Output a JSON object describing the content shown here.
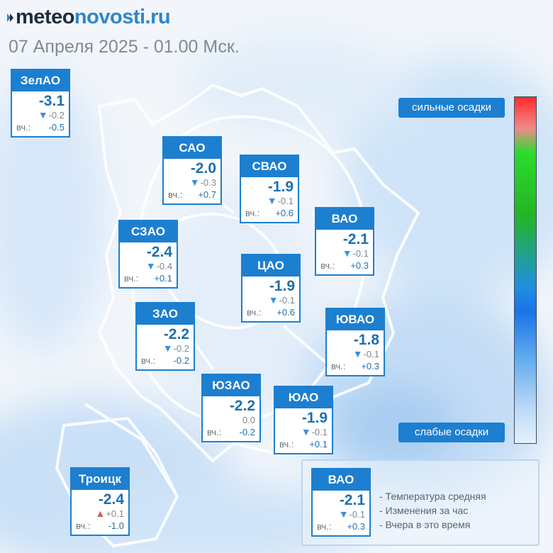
{
  "header": {
    "logo_left": "meteo",
    "logo_right": "novosti.ru",
    "date": "07 Апреля 2025 - 01.00 Мск."
  },
  "yesterday_label": "вч.:",
  "districts": [
    {
      "id": "zelao",
      "name": "ЗелАО",
      "temp": "-3.1",
      "dir": "down",
      "change": "-0.2",
      "yesterday": "-0.5"
    },
    {
      "id": "sao",
      "name": "САО",
      "temp": "-2.0",
      "dir": "down",
      "change": "-0.3",
      "yesterday": "+0.7"
    },
    {
      "id": "svao",
      "name": "СВАО",
      "temp": "-1.9",
      "dir": "down",
      "change": "-0.1",
      "yesterday": "+0.6"
    },
    {
      "id": "vao",
      "name": "ВАО",
      "temp": "-2.1",
      "dir": "down",
      "change": "-0.1",
      "yesterday": "+0.3"
    },
    {
      "id": "szao",
      "name": "СЗАО",
      "temp": "-2.4",
      "dir": "down",
      "change": "-0.4",
      "yesterday": "+0.1"
    },
    {
      "id": "cao",
      "name": "ЦАО",
      "temp": "-1.9",
      "dir": "down",
      "change": "-0.1",
      "yesterday": "+0.6"
    },
    {
      "id": "zao",
      "name": "ЗАО",
      "temp": "-2.2",
      "dir": "down",
      "change": "-0.2",
      "yesterday": "-0.2"
    },
    {
      "id": "yuvao",
      "name": "ЮВАО",
      "temp": "-1.8",
      "dir": "down",
      "change": "-0.1",
      "yesterday": "+0.3"
    },
    {
      "id": "yuzao",
      "name": "ЮЗАО",
      "temp": "-2.2",
      "dir": "none",
      "change": "0.0",
      "yesterday": "-0.2"
    },
    {
      "id": "yuao",
      "name": "ЮАО",
      "temp": "-1.9",
      "dir": "down",
      "change": "-0.1",
      "yesterday": "+0.1"
    },
    {
      "id": "troitsk",
      "name": "Троицк",
      "temp": "-2.4",
      "dir": "up",
      "change": "+0.1",
      "yesterday": "-1.0"
    }
  ],
  "scale": {
    "top_label": "сильные осадки",
    "bottom_label": "слабые осадки",
    "colors": [
      "#ff2b2b",
      "#2ddb2d",
      "#1a73e8",
      "#e6f1fc"
    ]
  },
  "legend": {
    "sample": {
      "name": "ВАО",
      "temp": "-2.1",
      "dir": "down",
      "change": "-0.1",
      "yesterday": "+0.3"
    },
    "line1": "- Температура средняя",
    "line2": "- Изменения за час",
    "line3": "- Вчера в это время"
  },
  "colors": {
    "accent": "#1d7fd0",
    "temp_text": "#1d6fb0",
    "arrow_down": "#3d8fdc",
    "arrow_up": "#e05555"
  }
}
